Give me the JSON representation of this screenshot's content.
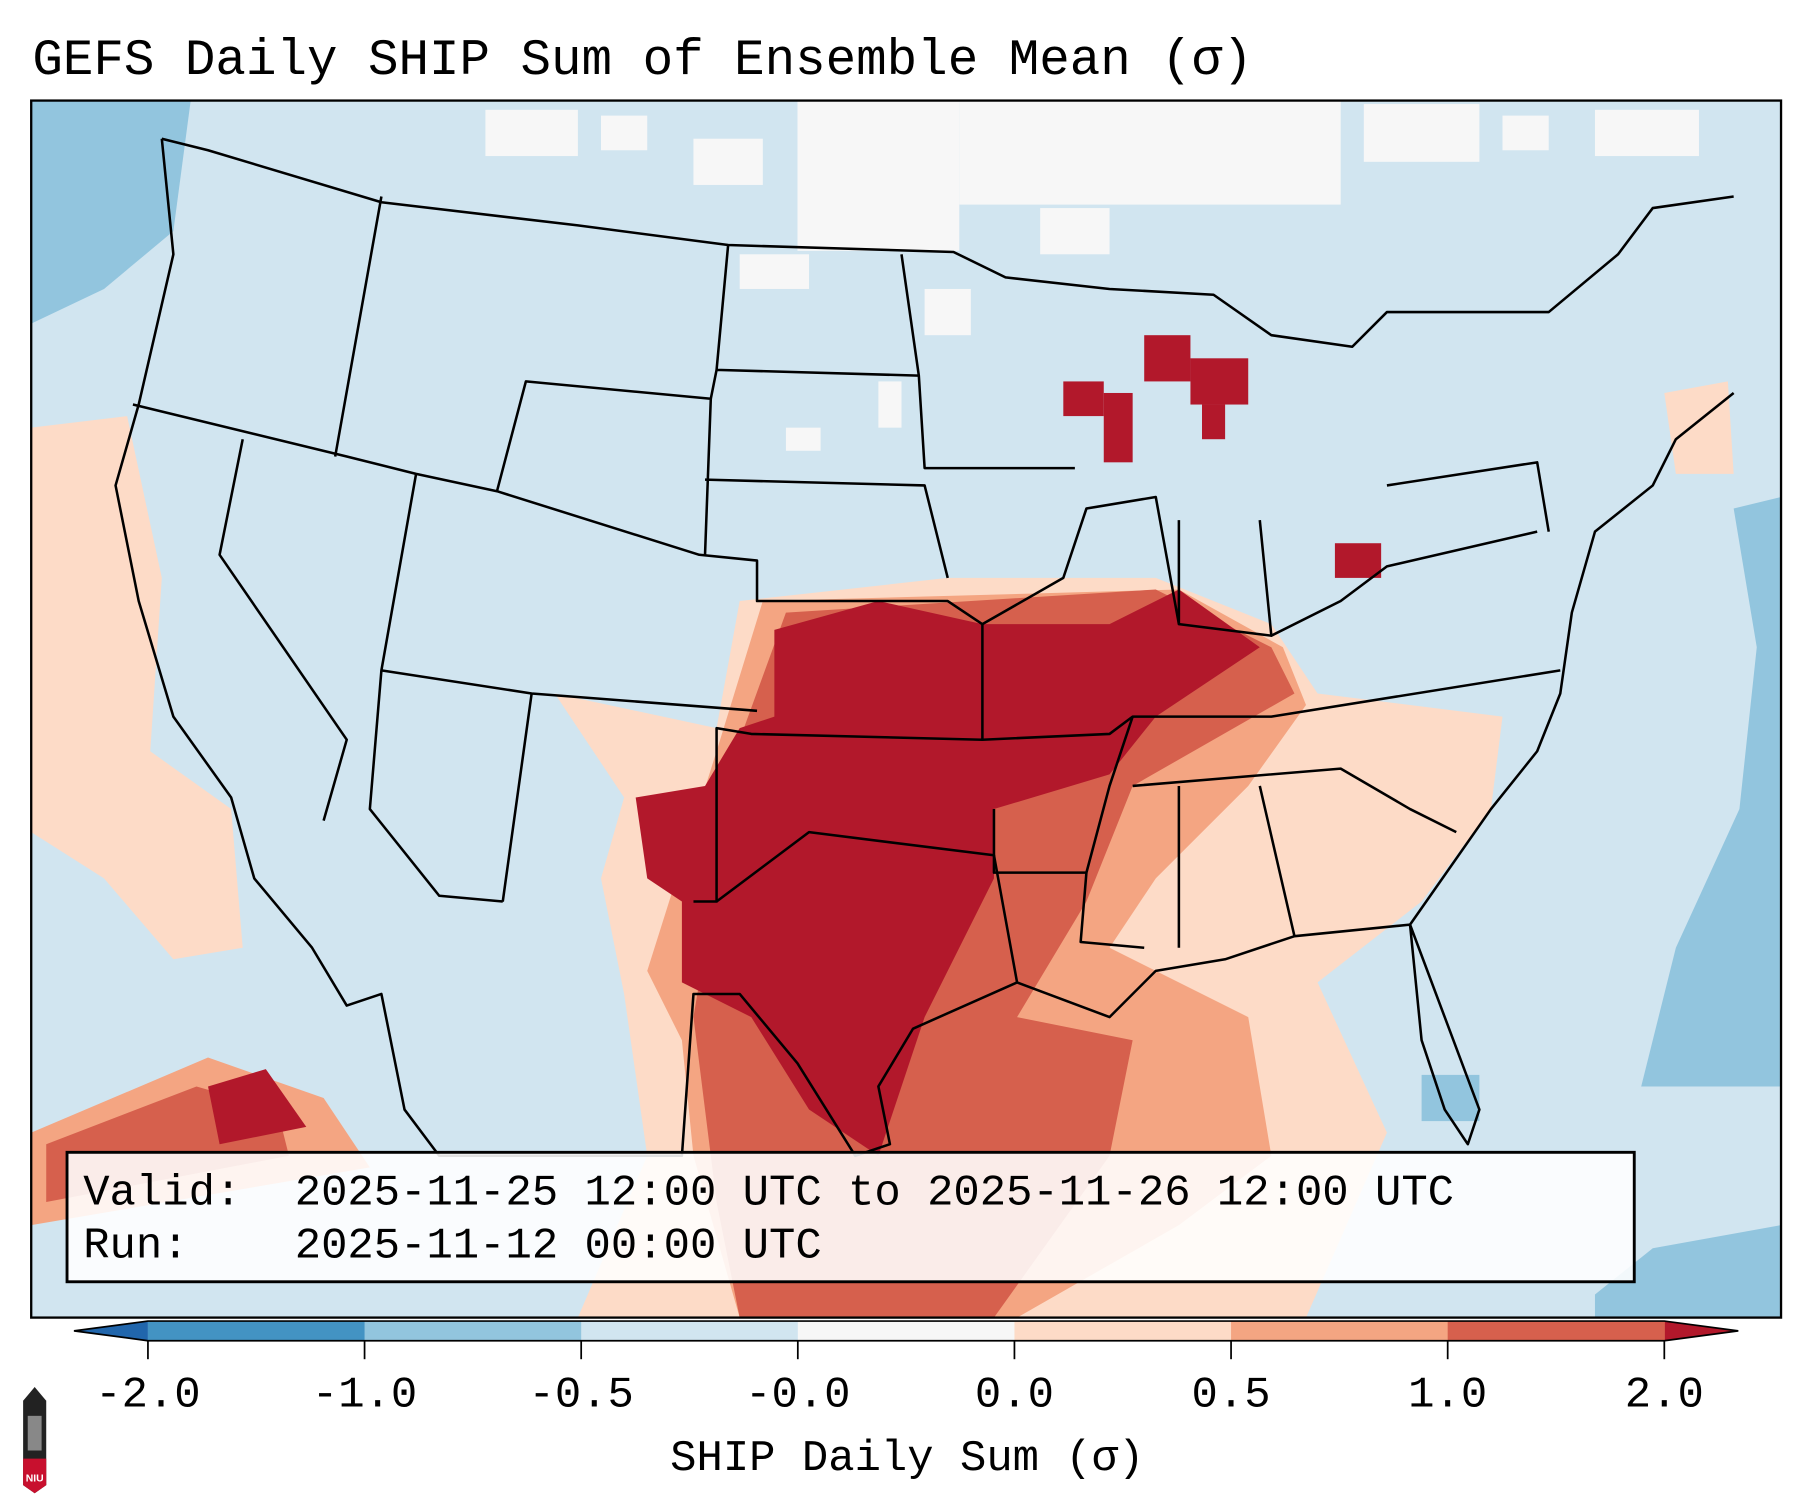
{
  "title": "GEFS Daily SHIP Sum of Ensemble Mean (σ)",
  "info_box": {
    "valid_label": "Valid:",
    "valid_value": "2025-11-25 12:00 UTC to 2025-11-26 12:00 UTC",
    "run_label": "Run:",
    "run_value": "2025-11-12 00:00 UTC"
  },
  "logo": {
    "text": "NIU"
  },
  "chart_data": {
    "type": "heatmap",
    "title": "GEFS Daily SHIP Sum of Ensemble Mean (σ)",
    "region": "Contiguous United States",
    "colorbar": {
      "label": "SHIP Daily Sum (σ)",
      "tick_labels": [
        "-2.0",
        "-1.0",
        "-0.5",
        "-0.0",
        "0.0",
        "0.5",
        "1.0",
        "2.0"
      ],
      "bins": [
        {
          "from": -2.0,
          "to": -1.0,
          "color": "#4393c3"
        },
        {
          "from": -1.0,
          "to": -0.5,
          "color": "#92c5de"
        },
        {
          "from": -0.5,
          "to": -0.0,
          "color": "#d1e5f0"
        },
        {
          "from": -0.0,
          "to": 0.0,
          "color": "#f7f7f7"
        },
        {
          "from": 0.0,
          "to": 0.5,
          "color": "#fddbc7"
        },
        {
          "from": 0.5,
          "to": 1.0,
          "color": "#f4a582"
        },
        {
          "from": 1.0,
          "to": 2.0,
          "color": "#d6604d"
        }
      ],
      "extend_min_color": "#2166ac",
      "extend_max_color": "#b2182b"
    }
  }
}
